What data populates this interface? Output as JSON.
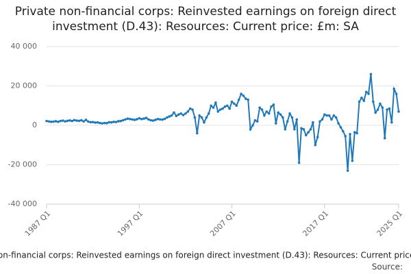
{
  "chart_data": {
    "type": "line",
    "title": "Private non-financial corps: Reinvested earnings on foreign direct investment (D.43): Resources: Current price: £m: SA",
    "source_label": "Source:",
    "categories": [
      "1987 Q1",
      null,
      null,
      null,
      null,
      null,
      null,
      null,
      null,
      null,
      null,
      null,
      null,
      null,
      null,
      null,
      null,
      null,
      null,
      null,
      null,
      null,
      null,
      null,
      null,
      null,
      null,
      null,
      null,
      null,
      null,
      null,
      null,
      null,
      null,
      null,
      null,
      null,
      null,
      null,
      "1997 Q1",
      null,
      null,
      null,
      null,
      null,
      null,
      null,
      null,
      null,
      null,
      null,
      null,
      null,
      null,
      null,
      null,
      null,
      null,
      null,
      null,
      null,
      null,
      null,
      null,
      null,
      null,
      null,
      null,
      null,
      null,
      null,
      null,
      null,
      null,
      null,
      null,
      null,
      null,
      null,
      "2007 Q1",
      null,
      null,
      null,
      null,
      null,
      null,
      null,
      null,
      null,
      null,
      null,
      null,
      null,
      null,
      null,
      null,
      null,
      null,
      null,
      null,
      null,
      null,
      null,
      null,
      null,
      null,
      null,
      null,
      null,
      null,
      null,
      null,
      null,
      null,
      null,
      null,
      null,
      null,
      null,
      "2017 Q1",
      null,
      null,
      null,
      null,
      null,
      null,
      null,
      null,
      null,
      null,
      null,
      null,
      null,
      null,
      null,
      null,
      null,
      null,
      null,
      null,
      null,
      null,
      null,
      null,
      null,
      null,
      null,
      null,
      null,
      null,
      null,
      "2025 Q1"
    ],
    "series": [
      {
        "name": "Private non-financial corps: Reinvested earnings on foreign direct investment (D.43): Resources: Current price: £m: SA",
        "color": "#1f78b8",
        "values": [
          2200,
          2000,
          1800,
          1900,
          2100,
          1800,
          2200,
          2400,
          2000,
          2300,
          2500,
          2200,
          2700,
          2400,
          2300,
          2600,
          2000,
          2800,
          1900,
          1600,
          1700,
          1400,
          1500,
          1200,
          1000,
          1200,
          1100,
          1600,
          1500,
          1800,
          1700,
          2100,
          2200,
          2600,
          3000,
          3400,
          3200,
          3000,
          2800,
          3100,
          3600,
          3200,
          3400,
          3800,
          3000,
          2600,
          2400,
          2800,
          3200,
          3000,
          2900,
          3300,
          4000,
          4500,
          5000,
          6500,
          4800,
          5500,
          6000,
          5200,
          6000,
          7000,
          8500,
          8000,
          4000,
          -4000,
          5000,
          4000,
          1500,
          4000,
          6000,
          10000,
          9000,
          11500,
          7000,
          8000,
          8500,
          9500,
          10000,
          8500,
          12000,
          11000,
          10000,
          13000,
          16000,
          15000,
          13500,
          13000,
          -2000,
          0,
          2500,
          2000,
          9000,
          8000,
          5000,
          7000,
          6000,
          9500,
          10500,
          1000,
          6500,
          5500,
          4000,
          -2000,
          2000,
          6000,
          4000,
          -2000,
          3000,
          -19000,
          -1500,
          -2000,
          -5000,
          -3500,
          -2000,
          1500,
          -10000,
          -6000,
          2000,
          3000,
          5500,
          5000,
          5000,
          3000,
          5000,
          4000,
          1000,
          -1000,
          -3000,
          -5500,
          -23000,
          -4500,
          -18000,
          -3500,
          -4000,
          12000,
          14000,
          12500,
          17000,
          16000,
          26000,
          12000,
          6500,
          8000,
          11000,
          9000,
          -6500,
          8000,
          8500,
          1500,
          18500,
          16000,
          7000
        ]
      }
    ],
    "ylim": [
      -40000,
      40000
    ],
    "yticks": [
      {
        "value": -40000,
        "label": "-40 000"
      },
      {
        "value": -20000,
        "label": "-20 000"
      },
      0,
      {
        "value": 20000,
        "label": "20 000"
      },
      {
        "value": 40000,
        "label": "40 000"
      }
    ],
    "grid": true
  }
}
